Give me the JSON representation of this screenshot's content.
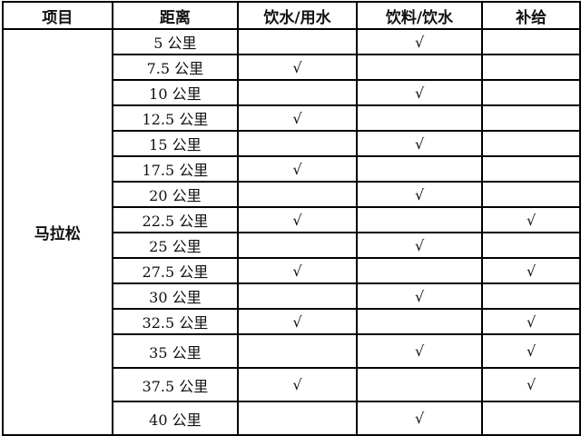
{
  "headers": [
    "项目",
    "距离",
    "饮水/用水",
    "饮料/饮水",
    "补给"
  ],
  "item": "马拉松",
  "check_mark": "√",
  "rows": [
    {
      "distance": "5 公里",
      "water": "",
      "drink": "√",
      "supply": ""
    },
    {
      "distance": "7.5 公里",
      "water": "√",
      "drink": "",
      "supply": ""
    },
    {
      "distance": "10 公里",
      "water": "",
      "drink": "√",
      "supply": ""
    },
    {
      "distance": "12.5 公里",
      "water": "√",
      "drink": "",
      "supply": ""
    },
    {
      "distance": "15 公里",
      "water": "",
      "drink": "√",
      "supply": ""
    },
    {
      "distance": "17.5 公里",
      "water": "√",
      "drink": "",
      "supply": ""
    },
    {
      "distance": "20 公里",
      "water": "",
      "drink": "√",
      "supply": ""
    },
    {
      "distance": "22.5 公里",
      "water": "√",
      "drink": "",
      "supply": "√"
    },
    {
      "distance": "25 公里",
      "water": "",
      "drink": "√",
      "supply": ""
    },
    {
      "distance": "27.5 公里",
      "water": "√",
      "drink": "",
      "supply": "√"
    },
    {
      "distance": "30 公里",
      "water": "",
      "drink": "√",
      "supply": ""
    },
    {
      "distance": "32.5 公里",
      "water": "√",
      "drink": "",
      "supply": "√"
    },
    {
      "distance": "35 公里",
      "water": "",
      "drink": "√",
      "supply": "√"
    },
    {
      "distance": "37.5 公里",
      "water": "√",
      "drink": "",
      "supply": "√"
    },
    {
      "distance": "40 公里",
      "water": "",
      "drink": "√",
      "supply": ""
    }
  ]
}
